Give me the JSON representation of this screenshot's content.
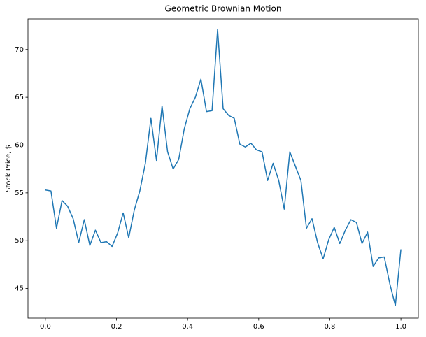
{
  "chart_data": {
    "type": "line",
    "title": "Geometric Brownian Motion",
    "y_label": "Stock Price, $",
    "x": [
      0,
      0.015625,
      0.03125,
      0.046875,
      0.0625,
      0.078125,
      0.09375,
      0.109375,
      0.125,
      0.140625,
      0.15625,
      0.171875,
      0.1875,
      0.203125,
      0.21875,
      0.234375,
      0.25,
      0.265625,
      0.28125,
      0.296875,
      0.3125,
      0.328125,
      0.34375,
      0.359375,
      0.375,
      0.390625,
      0.40625,
      0.421875,
      0.4375,
      0.453125,
      0.46875,
      0.484375,
      0.5,
      0.515625,
      0.53125,
      0.546875,
      0.5625,
      0.578125,
      0.59375,
      0.609375,
      0.625,
      0.640625,
      0.65625,
      0.671875,
      0.6875,
      0.703125,
      0.71875,
      0.734375,
      0.75,
      0.765625,
      0.78125,
      0.796875,
      0.8125,
      0.828125,
      0.84375,
      0.859375,
      0.875,
      0.890625,
      0.90625,
      0.921875,
      0.9375,
      0.953125,
      0.96875,
      0.984375,
      1
    ],
    "series": [
      {
        "color": "#1f77b4",
        "values": [
          55.3,
          55.2,
          51.3,
          54.2,
          53.6,
          52.3,
          49.8,
          52.2,
          49.5,
          51.1,
          49.8,
          49.9,
          49.4,
          50.8,
          52.9,
          50.3,
          53.2,
          55.2,
          58.1,
          62.8,
          58.4,
          64.1,
          59.3,
          57.5,
          58.5,
          61.7,
          63.8,
          65.0,
          66.9,
          63.5,
          63.6,
          72.1,
          63.8,
          63.1,
          62.8,
          60.1,
          59.8,
          60.2,
          59.5,
          59.3,
          56.3,
          58.1,
          56.3,
          53.3,
          59.3,
          57.8,
          56.3,
          51.3,
          52.3,
          49.8,
          48.1,
          50.1,
          51.4,
          49.7,
          51.1,
          52.2,
          51.9,
          49.7,
          50.9,
          47.3,
          48.2,
          48.3,
          45.5,
          43.2,
          49.1
        ]
      }
    ],
    "xlim": [
      -0.049,
      1.049
    ],
    "ylim": [
      41.9,
      73.2
    ],
    "xticks": [
      {
        "value": 0,
        "label": "0.0"
      },
      {
        "value": 0.2,
        "label": "0.2"
      },
      {
        "value": 0.4,
        "label": "0.4"
      },
      {
        "value": 0.6,
        "label": "0.6"
      },
      {
        "value": 0.8,
        "label": "0.8"
      },
      {
        "value": 1,
        "label": "1.0"
      }
    ],
    "yticks": [
      45,
      50,
      55,
      60,
      65,
      70
    ],
    "grid": false
  }
}
